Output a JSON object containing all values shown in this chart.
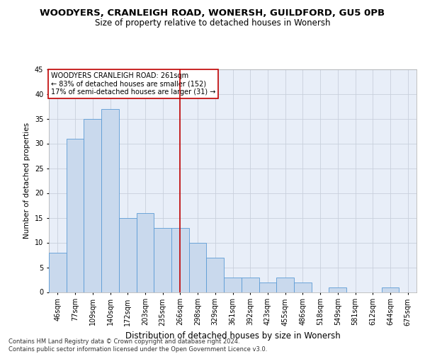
{
  "title": "WOODYERS, CRANLEIGH ROAD, WONERSH, GUILDFORD, GU5 0PB",
  "subtitle": "Size of property relative to detached houses in Wonersh",
  "xlabel": "Distribution of detached houses by size in Wonersh",
  "ylabel": "Number of detached properties",
  "categories": [
    "46sqm",
    "77sqm",
    "109sqm",
    "140sqm",
    "172sqm",
    "203sqm",
    "235sqm",
    "266sqm",
    "298sqm",
    "329sqm",
    "361sqm",
    "392sqm",
    "423sqm",
    "455sqm",
    "486sqm",
    "518sqm",
    "549sqm",
    "581sqm",
    "612sqm",
    "644sqm",
    "675sqm"
  ],
  "values": [
    8,
    31,
    35,
    37,
    15,
    16,
    13,
    13,
    10,
    7,
    3,
    3,
    2,
    3,
    2,
    0,
    1,
    0,
    0,
    1,
    0
  ],
  "bar_color": "#c9d9ed",
  "bar_edge_color": "#5b9bd5",
  "vline_index": 7,
  "vline_color": "#c00000",
  "annotation_text": "WOODYERS CRANLEIGH ROAD: 261sqm\n← 83% of detached houses are smaller (152)\n17% of semi-detached houses are larger (31) →",
  "annotation_box_color": "#c00000",
  "ylim": [
    0,
    45
  ],
  "yticks": [
    0,
    5,
    10,
    15,
    20,
    25,
    30,
    35,
    40,
    45
  ],
  "grid_color": "#c8d0dc",
  "background_color": "#e8eef8",
  "footer": "Contains HM Land Registry data © Crown copyright and database right 2024.\nContains public sector information licensed under the Open Government Licence v3.0.",
  "title_fontsize": 9.5,
  "subtitle_fontsize": 8.5,
  "xlabel_fontsize": 8.5,
  "ylabel_fontsize": 7.5,
  "tick_fontsize": 7,
  "annotation_fontsize": 7
}
